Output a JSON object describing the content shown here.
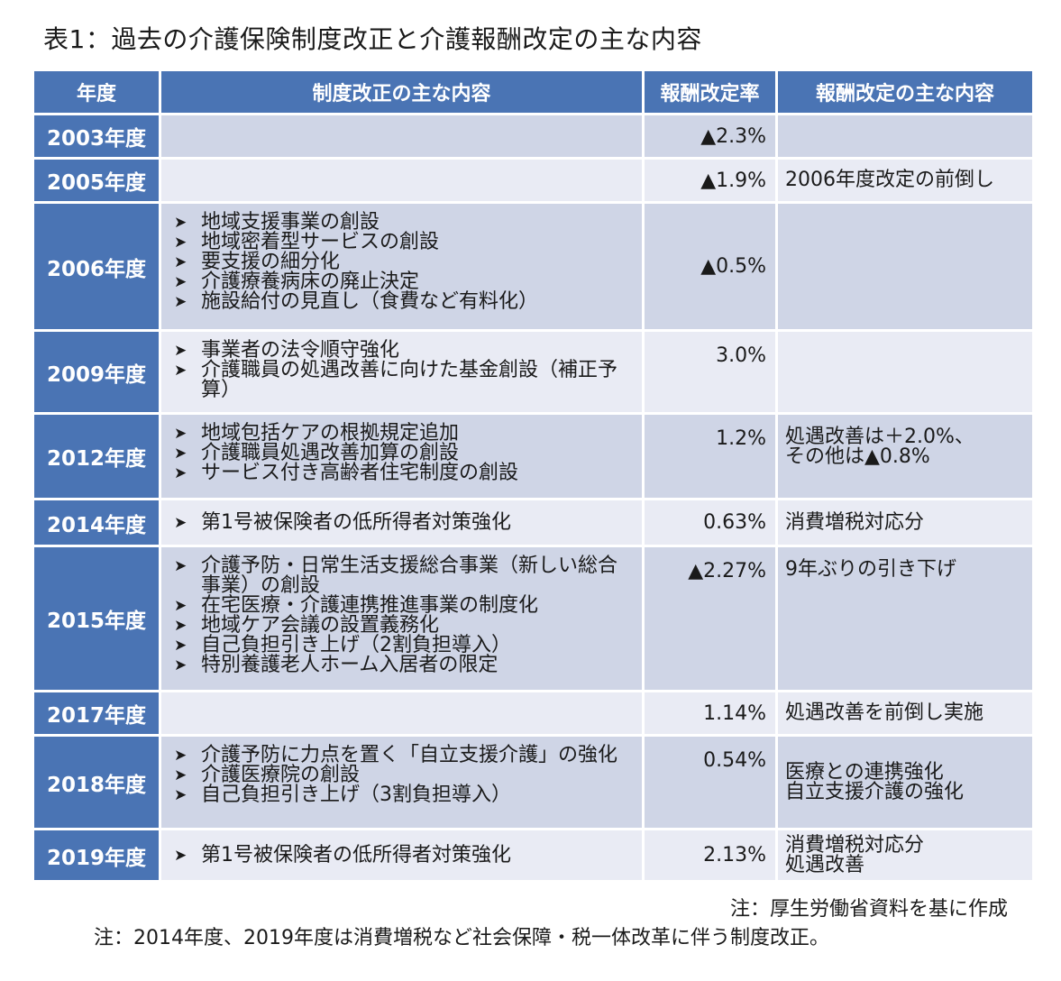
{
  "title": "表1：過去の介護保険制度改正と介護報酬改定の主な内容",
  "table": {
    "headers": {
      "year": "年度",
      "changes": "制度改正の主な内容",
      "rate": "報酬改定率",
      "notes": "報酬改定の主な内容"
    },
    "rows": [
      {
        "year": "2003年度",
        "changes": [],
        "rate": "▲2.3%",
        "notes": []
      },
      {
        "year": "2005年度",
        "changes": [],
        "rate": "▲1.9%",
        "notes": [
          "2006年度改定の前倒し"
        ]
      },
      {
        "year": "2006年度",
        "changes": [
          "地域支援事業の創設",
          "地域密着型サービスの創設",
          "要支援の細分化",
          "介護療養病床の廃止決定",
          "施設給付の見直し（食費など有料化）"
        ],
        "rate": "▲0.5%",
        "notes": []
      },
      {
        "year": "2009年度",
        "changes": [
          "事業者の法令順守強化",
          "介護職員の処遇改善に向けた基金創設（補正予算）"
        ],
        "rate": "3.0%",
        "notes": []
      },
      {
        "year": "2012年度",
        "changes": [
          "地域包括ケアの根拠規定追加",
          "介護職員処遇改善加算の創設",
          "サービス付き高齢者住宅制度の創設"
        ],
        "rate": "1.2%",
        "notes": [
          "処遇改善は＋2.0%、",
          "その他は▲0.8%"
        ]
      },
      {
        "year": "2014年度",
        "changes": [
          "第1号被保険者の低所得者対策強化"
        ],
        "rate": "0.63%",
        "notes": [
          "消費増税対応分"
        ]
      },
      {
        "year": "2015年度",
        "changes": [
          "介護予防・日常生活支援総合事業（新しい総合事業）の創設",
          "在宅医療・介護連携推進事業の制度化",
          "地域ケア会議の設置義務化",
          "自己負担引き上げ（2割負担導入）",
          "特別養護老人ホーム入居者の限定"
        ],
        "rate": "▲2.27%",
        "notes": [
          "9年ぶりの引き下げ"
        ]
      },
      {
        "year": "2017年度",
        "changes": [],
        "rate": "1.14%",
        "notes": [
          "処遇改善を前倒し実施"
        ]
      },
      {
        "year": "2018年度",
        "changes": [
          "介護予防に力点を置く「自立支援介護」の強化",
          "介護医療院の創設",
          "自己負担引き上げ（3割負担導入）"
        ],
        "rate": "0.54%",
        "notes": [
          "医療との連携強化",
          "自立支援介護の強化"
        ]
      },
      {
        "year": "2019年度",
        "changes": [
          "第1号被保険者の低所得者対策強化"
        ],
        "rate": "2.13%",
        "notes": [
          "消費増税対応分",
          "処遇改善"
        ]
      }
    ]
  },
  "footnotes": [
    "注：厚生労働省資料を基に作成",
    "注：2014年度、2019年度は消費増税など社会保障・税一体改革に伴う制度改正。"
  ],
  "colors": {
    "header_bg": "#4a74b4",
    "row_dark": "#cfd5e6",
    "row_light": "#e9ebf4",
    "header_text": "#ffffff"
  }
}
